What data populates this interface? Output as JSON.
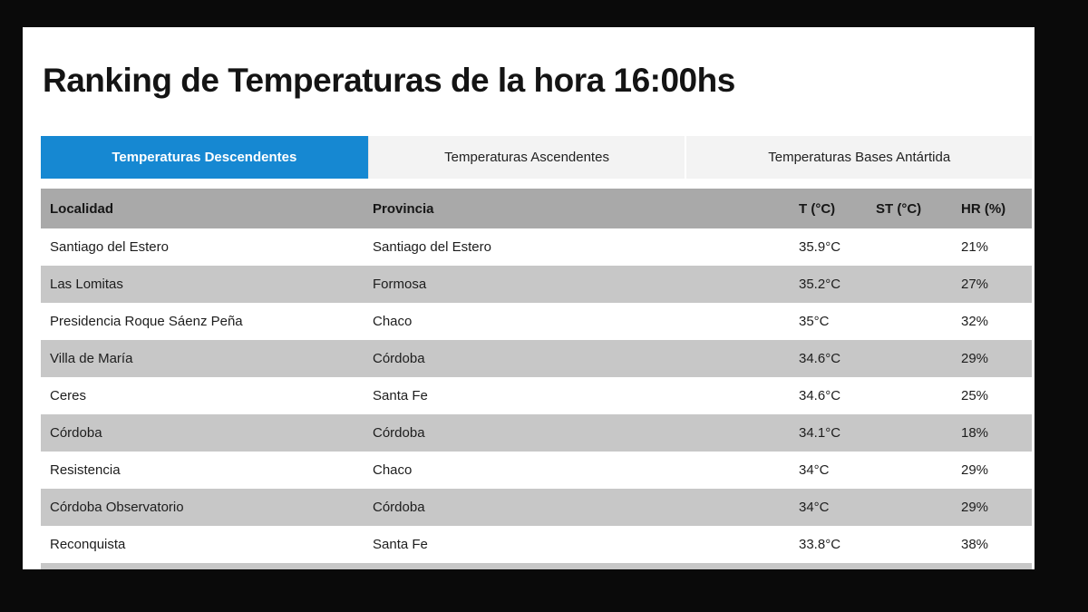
{
  "page": {
    "title": "Ranking de Temperaturas de la hora 16:00hs"
  },
  "tabs": [
    {
      "label": "Temperaturas Descendentes",
      "active": true
    },
    {
      "label": "Temperaturas Ascendentes",
      "active": false
    },
    {
      "label": "Temperaturas Bases Antártida",
      "active": false
    }
  ],
  "table": {
    "headers": [
      "Localidad",
      "Provincia",
      "T (°C)",
      "ST (°C)",
      "HR (%)"
    ],
    "rows": [
      [
        "Santiago del Estero",
        "Santiago del Estero",
        "35.9°C",
        "",
        "21%"
      ],
      [
        "Las Lomitas",
        "Formosa",
        "35.2°C",
        "",
        "27%"
      ],
      [
        "Presidencia Roque Sáenz Peña",
        "Chaco",
        "35°C",
        "",
        "32%"
      ],
      [
        "Villa de María",
        "Córdoba",
        "34.6°C",
        "",
        "29%"
      ],
      [
        "Ceres",
        "Santa Fe",
        "34.6°C",
        "",
        "25%"
      ],
      [
        "Córdoba",
        "Córdoba",
        "34.1°C",
        "",
        "18%"
      ],
      [
        "Resistencia",
        "Chaco",
        "34°C",
        "",
        "29%"
      ],
      [
        "Córdoba Observatorio",
        "Córdoba",
        "34°C",
        "",
        "29%"
      ],
      [
        "Reconquista",
        "Santa Fe",
        "33.8°C",
        "",
        "38%"
      ]
    ]
  },
  "colors": {
    "accent_blue": "#1688d2",
    "header_row_gray": "#a9a9a9",
    "alt_row_gray": "#c7c7c7"
  }
}
